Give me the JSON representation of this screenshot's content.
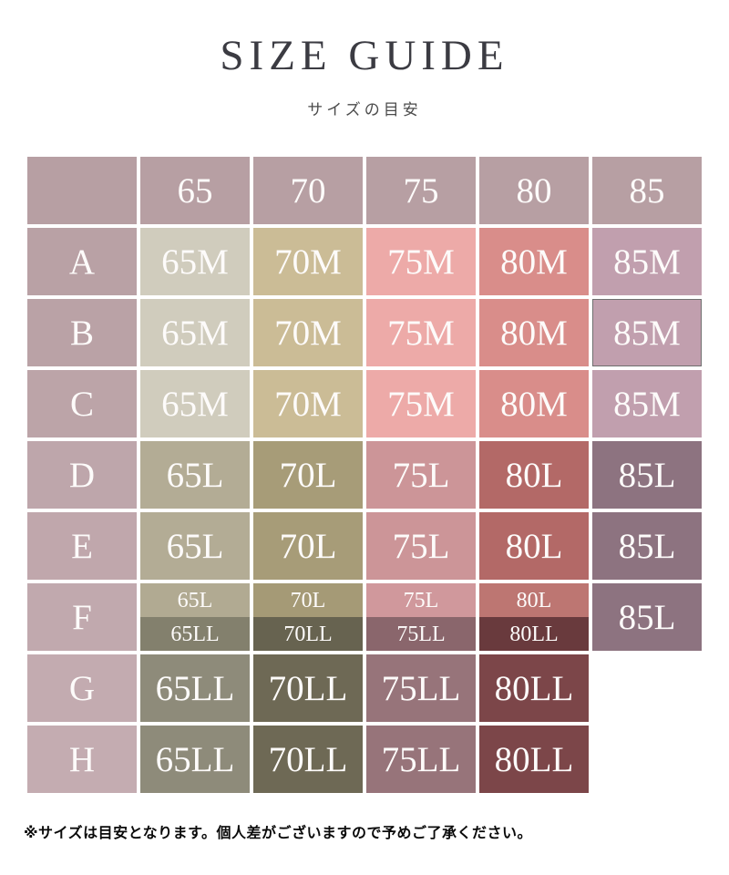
{
  "title": "SIZE GUIDE",
  "subtitle": "サイズの目安",
  "footer_note": "※サイズは目安となります。個人差がございますので予めご了承ください。",
  "palette": {
    "header_mauve": "#b79fa3",
    "title_color": "#3b3b42",
    "cell_text": "#fdfbfa",
    "highlight_border": "#6f6f6f",
    "background": "#ffffff"
  },
  "table": {
    "column_headers": [
      "",
      "65",
      "70",
      "75",
      "80",
      "85"
    ],
    "header_bg": "#b79fa3",
    "rows": [
      {
        "label": "A",
        "label_bg": "#b9a1a5",
        "cells": [
          {
            "text": "65M",
            "bg": "#d0ccbd"
          },
          {
            "text": "70M",
            "bg": "#cbbc96"
          },
          {
            "text": "75M",
            "bg": "#edaaa8"
          },
          {
            "text": "80M",
            "bg": "#d98d8a"
          },
          {
            "text": "85M",
            "bg": "#c19fae"
          }
        ]
      },
      {
        "label": "B",
        "label_bg": "#ba a2a6",
        "cells": [
          {
            "text": "65M",
            "bg": "#d0ccbd"
          },
          {
            "text": "70M",
            "bg": "#cbbc96"
          },
          {
            "text": "75M",
            "bg": "#edaaa8"
          },
          {
            "text": "80M",
            "bg": "#d98d8a"
          },
          {
            "text": "85M",
            "bg": "#c19fae",
            "highlight": true
          }
        ]
      },
      {
        "label": "C",
        "label_bg": "#bca4a8",
        "cells": [
          {
            "text": "65M",
            "bg": "#d0ccbd"
          },
          {
            "text": "70M",
            "bg": "#cbbc96"
          },
          {
            "text": "75M",
            "bg": "#edaaa8"
          },
          {
            "text": "80M",
            "bg": "#d98d8a"
          },
          {
            "text": "85M",
            "bg": "#c19fae"
          }
        ]
      },
      {
        "label": "D",
        "label_bg": "#bea6ab",
        "cells": [
          {
            "text": "65L",
            "bg": "#b3ac95"
          },
          {
            "text": "70L",
            "bg": "#a79c78"
          },
          {
            "text": "75L",
            "bg": "#cc9598"
          },
          {
            "text": "80L",
            "bg": "#b36osoba967"
          },
          {
            "text": "85L",
            "bg": "#8d7380"
          }
        ]
      },
      {
        "label": "E",
        "label_bg": "#c0a7ac",
        "cells": [
          {
            "text": "65L",
            "bg": "#b3ac95"
          },
          {
            "text": "70L",
            "bg": "#a79c78"
          },
          {
            "text": "75L",
            "bg": "#cc9598"
          },
          {
            "text": "80L",
            "bg": "#b36967"
          },
          {
            "text": "85L",
            "bg": "#8d7380"
          }
        ]
      },
      {
        "label": "F",
        "label_bg": "#c1a9ae",
        "cells": [
          {
            "split": true,
            "top": {
              "text": "65L",
              "bg": "#b1aa92"
            },
            "bottom": {
              "text": "65LL",
              "bg": "#83806d"
            }
          },
          {
            "split": true,
            "top": {
              "text": "70L",
              "bg": "#a59a76"
            },
            "bottom": {
              "text": "70LL",
              "bg": "#676350"
            }
          },
          {
            "split": true,
            "top": {
              "text": "75L",
              "bg": "#d0989c"
            },
            "bottom": {
              "text": "75LL",
              "bg": "#8a666c"
            }
          },
          {
            "split": true,
            "top": {
              "text": "80L",
              "bg": "#bd7672"
            },
            "bottom": {
              "text": "80LL",
              "bg": "#693a3d"
            }
          },
          {
            "text": "85L",
            "bg": "#8d7380"
          }
        ]
      },
      {
        "label": "G",
        "label_bg": "#c3abb0",
        "cells": [
          {
            "text": "65LL",
            "bg": "#8e8b7a"
          },
          {
            "text": "70LL",
            "bg": "#6e6955"
          },
          {
            "text": "75LL",
            "bg": "#97747a"
          },
          {
            "text": "80LL",
            "bg": "#7c4649"
          },
          {
            "empty": true
          }
        ]
      },
      {
        "label": "H",
        "label_bg": "#c4acb1",
        "cells": [
          {
            "text": "65LL",
            "bg": "#8e8b7a"
          },
          {
            "text": "70LL",
            "bg": "#6e6955"
          },
          {
            "text": "75LL",
            "bg": "#97747a"
          },
          {
            "text": "80LL",
            "bg": "#7c4649"
          },
          {
            "empty": true
          }
        ]
      }
    ]
  }
}
